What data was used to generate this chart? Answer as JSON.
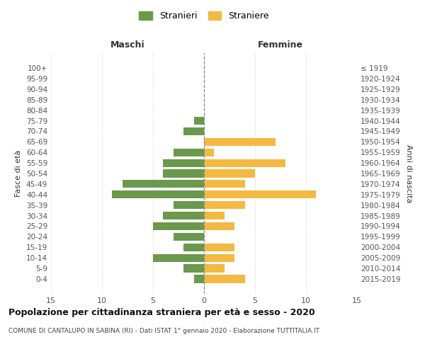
{
  "age_groups": [
    "100+",
    "95-99",
    "90-94",
    "85-89",
    "80-84",
    "75-79",
    "70-74",
    "65-69",
    "60-64",
    "55-59",
    "50-54",
    "45-49",
    "40-44",
    "35-39",
    "30-34",
    "25-29",
    "20-24",
    "15-19",
    "10-14",
    "5-9",
    "0-4"
  ],
  "birth_years": [
    "≤ 1919",
    "1920-1924",
    "1925-1929",
    "1930-1934",
    "1935-1939",
    "1940-1944",
    "1945-1949",
    "1950-1954",
    "1955-1959",
    "1960-1964",
    "1965-1969",
    "1970-1974",
    "1975-1979",
    "1980-1984",
    "1985-1989",
    "1990-1994",
    "1995-1999",
    "2000-2004",
    "2005-2009",
    "2010-2014",
    "2015-2019"
  ],
  "maschi": [
    0,
    0,
    0,
    0,
    0,
    1,
    2,
    0,
    3,
    4,
    4,
    8,
    9,
    3,
    4,
    5,
    3,
    2,
    5,
    2,
    1
  ],
  "femmine": [
    0,
    0,
    0,
    0,
    0,
    0,
    0,
    7,
    1,
    8,
    5,
    4,
    11,
    4,
    2,
    3,
    0,
    3,
    3,
    2,
    4
  ],
  "color_maschi": "#6a994e",
  "color_femmine": "#f4b942",
  "title_main": "Popolazione per cittadinanza straniera per età e sesso - 2020",
  "title_sub": "COMUNE DI CANTALUPO IN SABINA (RI) - Dati ISTAT 1° gennaio 2020 - Elaborazione TUTTITALIA.IT",
  "label_maschi_header": "Maschi",
  "label_femmine_header": "Femmine",
  "legend_stranieri": "Stranieri",
  "legend_straniere": "Straniere",
  "ylabel_left": "Fasce di età",
  "ylabel_right": "Anni di nascita",
  "xlim": 15,
  "background_color": "#ffffff",
  "grid_color": "#d0d0d0"
}
